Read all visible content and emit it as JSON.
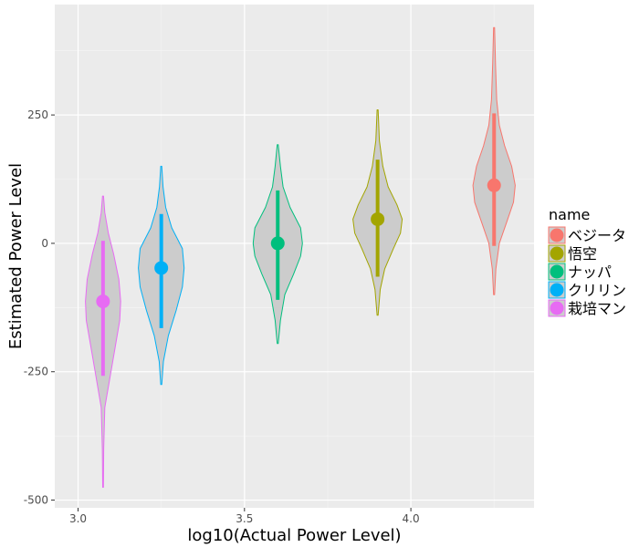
{
  "chart_data": {
    "type": "violin",
    "xlabel": "log10(Actual Power Level)",
    "ylabel": "Estimated Power Level",
    "xlim": [
      2.93,
      4.37
    ],
    "ylim": [
      -515,
      465
    ],
    "x_ticks": [
      3.0,
      3.5,
      4.0
    ],
    "x_tick_labels": [
      "3.0",
      "3.5",
      "4.0"
    ],
    "y_ticks": [
      -500,
      -250,
      0,
      250
    ],
    "y_tick_labels": [
      "-500",
      "-250",
      "0",
      "250"
    ],
    "grid": true,
    "legend": {
      "title": "name",
      "placement": "right"
    },
    "series": [
      {
        "name": "ベジータ",
        "color": "#F8766D",
        "x": 4.25,
        "mean": 113,
        "interval": [
          -5,
          253
        ],
        "range": [
          -100,
          420
        ],
        "density": [
          [
            -100,
            0.3
          ],
          [
            -50,
            1
          ],
          [
            0,
            3
          ],
          [
            40,
            7
          ],
          [
            80,
            11
          ],
          [
            113,
            12
          ],
          [
            150,
            10
          ],
          [
            190,
            6
          ],
          [
            230,
            3
          ],
          [
            280,
            1.5
          ],
          [
            350,
            0.8
          ],
          [
            420,
            0.3
          ]
        ]
      },
      {
        "name": "悟空",
        "color": "#A3A500",
        "x": 3.9,
        "mean": 47,
        "interval": [
          -65,
          163
        ],
        "range": [
          -140,
          260
        ],
        "density": [
          [
            -140,
            0.3
          ],
          [
            -90,
            1.5
          ],
          [
            -50,
            4
          ],
          [
            -10,
            9
          ],
          [
            20,
            13
          ],
          [
            47,
            14
          ],
          [
            75,
            11
          ],
          [
            110,
            6
          ],
          [
            150,
            3
          ],
          [
            200,
            1
          ],
          [
            260,
            0.3
          ]
        ]
      },
      {
        "name": "ナッパ",
        "color": "#00BF7D",
        "x": 3.6,
        "mean": 0,
        "interval": [
          -110,
          103
        ],
        "range": [
          -195,
          192
        ],
        "density": [
          [
            -195,
            0.3
          ],
          [
            -150,
            1.5
          ],
          [
            -100,
            4
          ],
          [
            -60,
            9
          ],
          [
            -25,
            13
          ],
          [
            0,
            14
          ],
          [
            30,
            13
          ],
          [
            70,
            7
          ],
          [
            110,
            3
          ],
          [
            150,
            1.5
          ],
          [
            192,
            0.3
          ]
        ]
      },
      {
        "name": "クリリン",
        "color": "#00B0F6",
        "x": 3.25,
        "mean": -48,
        "interval": [
          -165,
          57
        ],
        "range": [
          -275,
          150
        ],
        "density": [
          [
            -275,
            0.3
          ],
          [
            -230,
            1.2
          ],
          [
            -180,
            4
          ],
          [
            -130,
            8.5
          ],
          [
            -85,
            12
          ],
          [
            -48,
            13
          ],
          [
            -10,
            12
          ],
          [
            30,
            6
          ],
          [
            70,
            2.5
          ],
          [
            110,
            1
          ],
          [
            150,
            0.3
          ]
        ]
      },
      {
        "name": "栽培マン",
        "color": "#E76BF3",
        "x": 3.075,
        "mean": -113,
        "interval": [
          -258,
          5
        ],
        "range": [
          -475,
          92
        ],
        "density": [
          [
            -475,
            0.2
          ],
          [
            -400,
            0.4
          ],
          [
            -320,
            1
          ],
          [
            -260,
            4
          ],
          [
            -200,
            7
          ],
          [
            -150,
            9.5
          ],
          [
            -113,
            10
          ],
          [
            -70,
            9
          ],
          [
            -20,
            6
          ],
          [
            20,
            3
          ],
          [
            60,
            1
          ],
          [
            92,
            0.3
          ]
        ]
      }
    ]
  }
}
